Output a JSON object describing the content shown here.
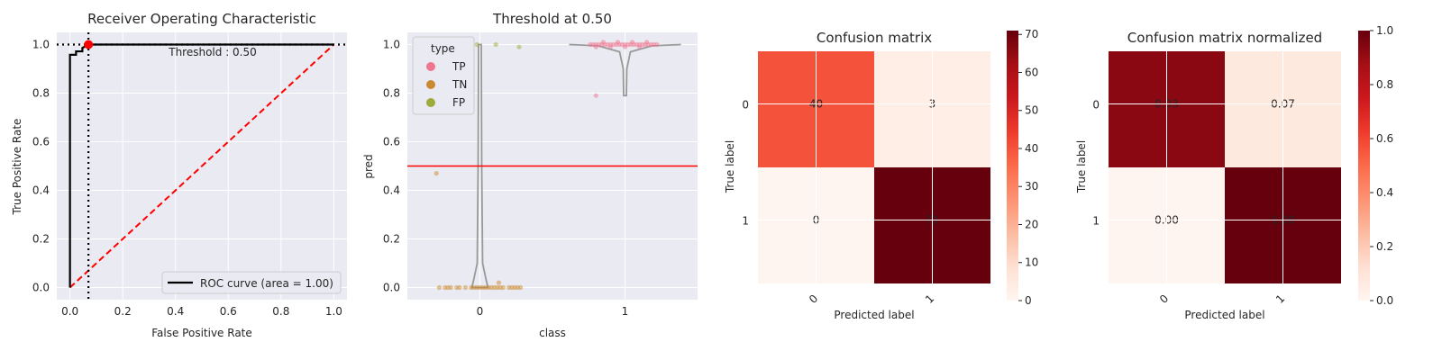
{
  "colors": {
    "plot_bg": "#eaeaf2",
    "grid": "#ffffff",
    "tp": "#f0758f",
    "tn": "#cc8a30",
    "fp": "#9faa3c",
    "roc": "#000000",
    "diag": "#ff0000",
    "threshold_line": "#ff0000",
    "violin": "#999999"
  },
  "chart_data": [
    {
      "type": "line",
      "title": "Receiver Operating Characteristic",
      "xlabel": "False Positive Rate",
      "ylabel": "True Positive Rate",
      "xlim": [
        -0.05,
        1.05
      ],
      "ylim": [
        -0.05,
        1.05
      ],
      "xticks": [
        "0.0",
        "0.2",
        "0.4",
        "0.6",
        "0.8",
        "1.0"
      ],
      "yticks": [
        "0.0",
        "0.2",
        "0.4",
        "0.6",
        "0.8",
        "1.0"
      ],
      "annotation": "Threshold : 0.50",
      "legend": {
        "position": "lower-right",
        "label": "ROC curve (area = 1.00)"
      },
      "roc_x": [
        0.0,
        0.0,
        0.0,
        0.023,
        0.023,
        0.047,
        0.047,
        0.07,
        1.0
      ],
      "roc_y": [
        0.0,
        0.0,
        0.958,
        0.958,
        0.972,
        0.972,
        0.986,
        1.0,
        1.0
      ],
      "diagonal": [
        [
          0,
          0
        ],
        [
          1,
          1
        ]
      ],
      "operating_point": {
        "fpr": 0.07,
        "tpr": 1.0
      },
      "grid": true
    },
    {
      "type": "scatter",
      "title": "Threshold at 0.50",
      "xlabel": "class",
      "ylabel": "pred",
      "categories": [
        "0",
        "1"
      ],
      "ylim": [
        -0.05,
        1.05
      ],
      "yticks": [
        "0.0",
        "0.2",
        "0.4",
        "0.6",
        "0.8",
        "1.0"
      ],
      "threshold": 0.5,
      "legend": {
        "position": "upper-left",
        "title": "type",
        "entries": [
          "TP",
          "TN",
          "FP"
        ]
      },
      "series": [
        {
          "name": "TP",
          "points": [
            [
              0.76,
              1.0
            ],
            [
              0.78,
              1.0
            ],
            [
              0.8,
              1.0
            ],
            [
              0.82,
              1.0
            ],
            [
              0.84,
              1.0
            ],
            [
              0.86,
              1.0
            ],
            [
              0.88,
              1.0
            ],
            [
              0.9,
              1.0
            ],
            [
              0.92,
              1.0
            ],
            [
              0.94,
              1.0
            ],
            [
              0.96,
              1.0
            ],
            [
              0.98,
              1.0
            ],
            [
              1.0,
              1.0
            ],
            [
              1.02,
              1.0
            ],
            [
              1.04,
              1.0
            ],
            [
              1.06,
              1.0
            ],
            [
              1.08,
              1.0
            ],
            [
              1.1,
              1.0
            ],
            [
              1.12,
              1.0
            ],
            [
              1.14,
              1.0
            ],
            [
              1.16,
              1.0
            ],
            [
              1.18,
              1.0
            ],
            [
              1.2,
              1.0
            ],
            [
              1.22,
              1.0
            ],
            [
              0.8,
              0.99
            ],
            [
              0.9,
              0.99
            ],
            [
              1.0,
              0.99
            ],
            [
              1.1,
              0.99
            ],
            [
              0.85,
              1.01
            ],
            [
              0.95,
              1.01
            ],
            [
              1.05,
              1.01
            ],
            [
              1.15,
              1.01
            ],
            [
              0.8,
              0.79
            ]
          ]
        },
        {
          "name": "TN",
          "points": [
            [
              -0.28,
              0.0
            ],
            [
              -0.24,
              0.0
            ],
            [
              -0.22,
              0.0
            ],
            [
              -0.2,
              0.0
            ],
            [
              -0.16,
              0.0
            ],
            [
              -0.14,
              0.0
            ],
            [
              -0.1,
              0.0
            ],
            [
              -0.06,
              0.0
            ],
            [
              -0.04,
              0.0
            ],
            [
              -0.02,
              0.0
            ],
            [
              0.0,
              0.0
            ],
            [
              0.02,
              0.0
            ],
            [
              0.04,
              0.0
            ],
            [
              0.06,
              0.0
            ],
            [
              0.08,
              0.0
            ],
            [
              0.1,
              0.0
            ],
            [
              0.12,
              0.0
            ],
            [
              0.14,
              0.0
            ],
            [
              0.16,
              0.0
            ],
            [
              0.2,
              0.0
            ],
            [
              0.22,
              0.0
            ],
            [
              0.24,
              0.0
            ],
            [
              0.26,
              0.0
            ],
            [
              0.28,
              0.0
            ],
            [
              -0.3,
              0.47
            ],
            [
              0.13,
              0.02
            ]
          ]
        },
        {
          "name": "FP",
          "points": [
            [
              -0.02,
              1.0
            ],
            [
              0.11,
              1.0
            ],
            [
              0.27,
              0.99
            ]
          ]
        }
      ],
      "grid": true
    },
    {
      "type": "heatmap",
      "title": "Confusion matrix",
      "xlabel": "Predicted label",
      "ylabel": "True label",
      "x_ticks": [
        "0",
        "1"
      ],
      "y_ticks": [
        "0",
        "1"
      ],
      "values": [
        [
          40,
          3
        ],
        [
          0,
          71
        ]
      ],
      "labels": [
        [
          "40",
          "3"
        ],
        [
          "0",
          "71"
        ]
      ],
      "colorbar": {
        "min": 0,
        "max": 71,
        "ticks": [
          "0",
          "10",
          "20",
          "30",
          "40",
          "50",
          "60",
          "70"
        ]
      }
    },
    {
      "type": "heatmap",
      "title": "Confusion matrix normalized",
      "xlabel": "Predicted label",
      "ylabel": "True label",
      "x_ticks": [
        "0",
        "1"
      ],
      "y_ticks": [
        "0",
        "1"
      ],
      "values": [
        [
          0.93,
          0.07
        ],
        [
          0.0,
          1.0
        ]
      ],
      "labels": [
        [
          "0.93",
          "0.07"
        ],
        [
          "0.00",
          "1.00"
        ]
      ],
      "colorbar": {
        "min": 0,
        "max": 1,
        "ticks": [
          "0.0",
          "0.2",
          "0.4",
          "0.6",
          "0.8",
          "1.0"
        ]
      }
    }
  ]
}
